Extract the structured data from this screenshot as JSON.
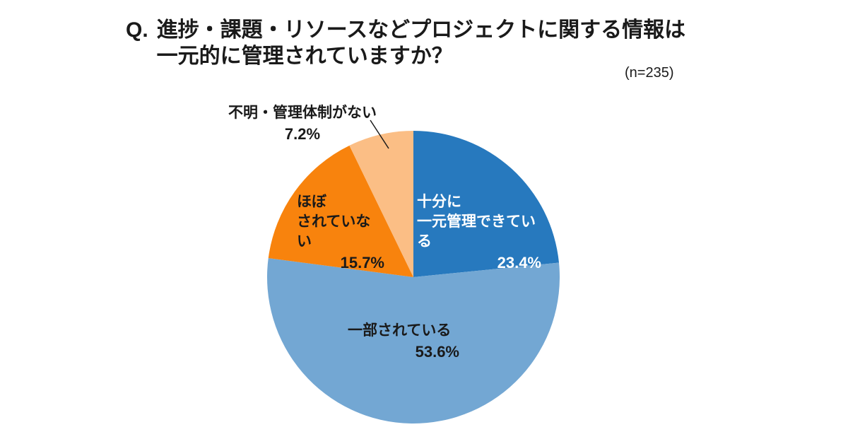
{
  "title": {
    "prefix": "Q.",
    "line1": "進捗・課題・リソースなどプロジェクトに関する情報は",
    "line2": "一元的に管理されていますか？"
  },
  "sample_note": "(n=235)",
  "chart_data": {
    "type": "pie",
    "title": "Q. 進捗・課題・リソースなどプロジェクトに関する情報は一元的に管理されていますか？",
    "sample_note": "(n=235)",
    "unit": "%",
    "start_angle_deg": -90,
    "direction": "clockwise",
    "legend": "none",
    "slices": [
      {
        "label": "十分に一元管理できている",
        "value": 23.4,
        "color": "#2779BE",
        "text_color": "#FFFFFF"
      },
      {
        "label": "一部されている",
        "value": 53.6,
        "color": "#73A7D3",
        "text_color": "#1A1A1A"
      },
      {
        "label": "ほぼされていない",
        "value": 15.7,
        "color": "#F8830D",
        "text_color": "#1A1A1A"
      },
      {
        "label": "不明・管理体制がない",
        "value": 7.2,
        "color": "#FBBE85",
        "text_color": "#1A1A1A"
      }
    ]
  },
  "callouts": {
    "fully": {
      "lines": [
        "十分に",
        "一元管理できている"
      ],
      "pct": "23.4%"
    },
    "partial": {
      "lines": [
        "一部されている"
      ],
      "pct": "53.6%"
    },
    "rarely": {
      "lines": [
        "ほぼ",
        "されていない"
      ],
      "pct": "15.7%"
    },
    "unknown": {
      "lines": [
        "不明・管理体制がない"
      ],
      "pct": "7.2%"
    }
  },
  "leader_line_color": "#1a1a1a"
}
